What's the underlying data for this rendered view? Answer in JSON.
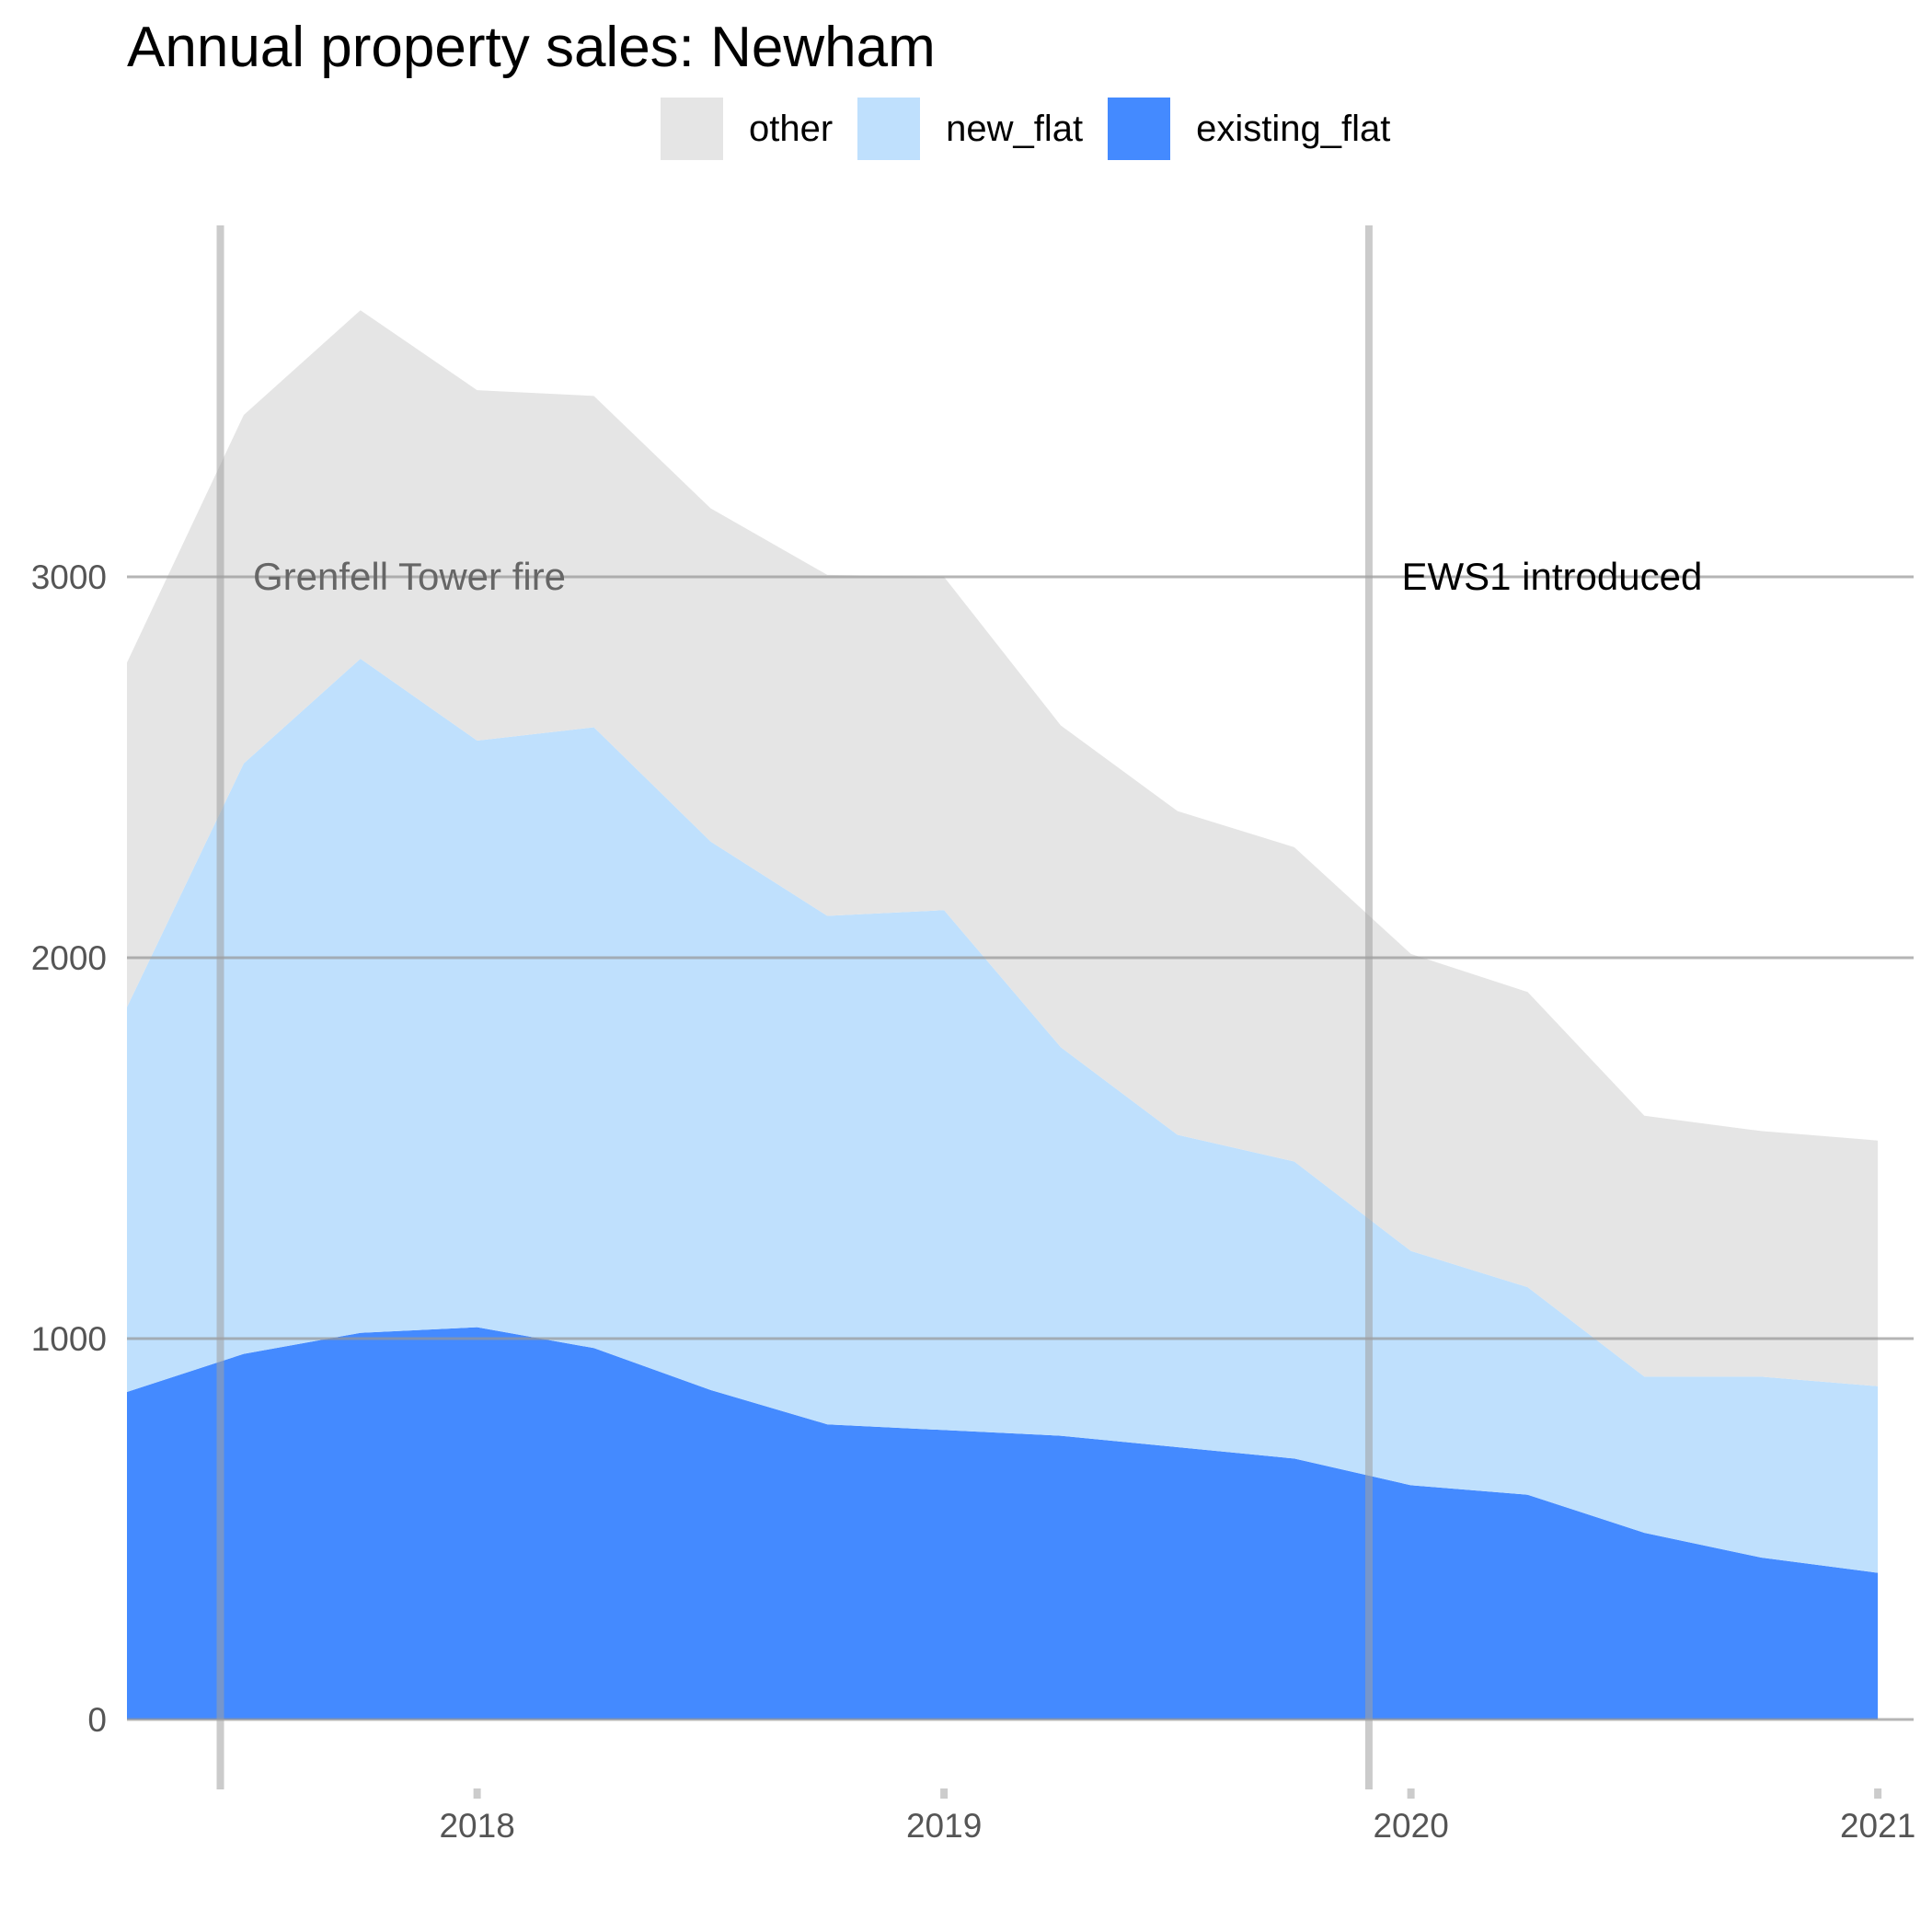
{
  "chart_data": {
    "type": "area",
    "stacked": true,
    "title": "Annual property sales: Newham",
    "xlabel": "",
    "ylabel": "",
    "x": [
      2017.25,
      2017.5,
      2017.75,
      2018.0,
      2018.25,
      2018.5,
      2018.75,
      2019.0,
      2019.25,
      2019.5,
      2019.75,
      2020.0,
      2020.25,
      2020.5,
      2020.75,
      2021.0
    ],
    "series": [
      {
        "name": "existing_flat",
        "color": "#448aff",
        "values": [
          860,
          960,
          1015,
          1030,
          975,
          865,
          775,
          760,
          745,
          715,
          685,
          615,
          590,
          490,
          425,
          385
        ]
      },
      {
        "name": "new_flat",
        "color": "#bfe0fd",
        "values": [
          1010,
          1550,
          1770,
          1540,
          1630,
          1440,
          1335,
          1365,
          1020,
          820,
          780,
          615,
          545,
          410,
          475,
          490
        ]
      },
      {
        "name": "other",
        "color": "#e5e5e5",
        "values": [
          905,
          915,
          915,
          920,
          870,
          875,
          895,
          875,
          845,
          850,
          825,
          780,
          775,
          685,
          645,
          645
        ]
      }
    ],
    "ylim": [
      0,
      3700
    ],
    "xlim": [
      2017.25,
      2021.08
    ],
    "yticks": [
      0,
      1000,
      2000,
      3000
    ],
    "ytick_labels": [
      "0",
      "1000",
      "2000",
      "3000"
    ],
    "xticks": [
      2018,
      2019,
      2020,
      2021
    ],
    "xtick_labels": [
      "2018",
      "2019",
      "2020",
      "2021"
    ],
    "legend_order": [
      "other",
      "new_flat",
      "existing_flat"
    ],
    "legend_position": "top",
    "grid": "horizontal",
    "events": [
      {
        "x": 2017.45,
        "label": "Grenfell Tower fire",
        "label_x": 2017.52,
        "label_y": 3000,
        "label_color": "#666666"
      },
      {
        "x": 2019.91,
        "label": "EWS1 introduced",
        "label_x": 2019.98,
        "label_y": 3000,
        "label_color": "#000000"
      }
    ]
  }
}
